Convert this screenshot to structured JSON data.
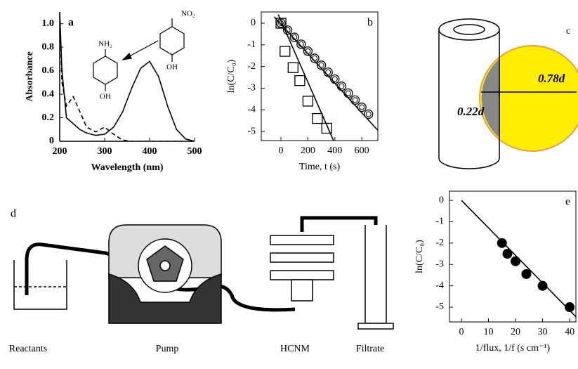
{
  "chart_data": [
    {
      "type": "line",
      "label": "a",
      "x_label": "Wavelength (nm)",
      "y_label": "Absorbance",
      "annotations": [
        "NO₂",
        "OH",
        "NH₂",
        "OH"
      ],
      "x": [
        200,
        205,
        215,
        230,
        245,
        260,
        280,
        300,
        320,
        340,
        360,
        380,
        400,
        420,
        440,
        460,
        480,
        500
      ],
      "series": [
        {
          "color": "#000000",
          "dash": false,
          "values": [
            1.1,
            0.6,
            0.2,
            0.15,
            0.1,
            0.07,
            0.05,
            0.06,
            0.12,
            0.25,
            0.45,
            0.62,
            0.68,
            0.55,
            0.3,
            0.1,
            0.02,
            0
          ]
        },
        {
          "color": "#000000",
          "dash": true,
          "values": [
            1.1,
            0.5,
            0.3,
            0.38,
            0.25,
            0.12,
            0.08,
            0.12,
            0.06,
            0.01,
            0,
            0,
            0,
            0,
            0,
            0,
            0,
            0
          ]
        }
      ],
      "xlim": [
        200,
        500
      ],
      "ylim": [
        0,
        1.1
      ],
      "xticks": [
        200,
        300,
        400,
        500
      ],
      "yticks": [
        0,
        0.2,
        0.4,
        0.6,
        0.8,
        {
          "value": 1,
          "label": "1.0"
        }
      ]
    },
    {
      "type": "scatter",
      "label": "b",
      "x_label": "Time, t (s)",
      "y_label": "ln(C/C₀)",
      "series": [
        {
          "marker": "circle",
          "color": "#000000",
          "x": [
            0,
            50,
            100,
            150,
            200,
            250,
            300,
            350,
            400,
            450,
            500,
            550,
            600,
            650
          ],
          "values": [
            0,
            -0.32,
            -0.65,
            -0.97,
            -1.29,
            -1.62,
            -1.94,
            -2.26,
            -2.58,
            -2.91,
            -3.23,
            -3.55,
            -3.88,
            -4.2
          ]
        },
        {
          "marker": "square",
          "color": "#000000",
          "x": [
            0,
            30,
            90,
            140,
            200,
            270,
            340
          ],
          "values": [
            0,
            -1.3,
            -2.05,
            -2.65,
            -3.6,
            -4.4,
            -4.85
          ]
        },
        {
          "marker": "none",
          "color": "#000000",
          "x": [
            -50,
            719
          ],
          "values": [
            0.3,
            -4.95
          ]
        },
        {
          "marker": "none",
          "color": "#000000",
          "x": [
            -20,
            390
          ],
          "values": [
            0.4,
            -5.42
          ]
        }
      ],
      "xlim": [
        -146,
        719
      ],
      "ylim": [
        -5.42,
        0.52
      ],
      "xticks": [
        0,
        200,
        400,
        600
      ],
      "yticks": [
        0,
        -1,
        -2,
        -3,
        -4,
        -5
      ]
    },
    {
      "type": "scatter",
      "label": "e",
      "x_label": "1/flux, 1/f (s cm⁻¹)",
      "y_label": "ln(C/C₀)",
      "series": [
        {
          "marker": "dot",
          "color": "#000000",
          "x": [
            15,
            17,
            20,
            24,
            30,
            40
          ],
          "values": [
            -2,
            -2.5,
            -2.85,
            -3.45,
            -4,
            -5
          ]
        },
        {
          "marker": "none",
          "color": "#000000",
          "x": [
            0,
            42.3
          ],
          "values": [
            0,
            -5.45
          ]
        }
      ],
      "xlim": [
        -4.4,
        42.3
      ],
      "ylim": [
        -5.69,
        0.43
      ],
      "xticks": [
        0,
        10,
        20,
        30,
        40
      ],
      "yticks": [
        0,
        -1,
        -2,
        -3,
        -4,
        -5
      ]
    }
  ],
  "panel_c": {
    "label": "c",
    "outer": "0.78d",
    "inner": "0.22d"
  },
  "panel_d": {
    "label": "d",
    "labels": [
      "Reactants",
      "Pump",
      "HCNM",
      "Filtrate"
    ]
  }
}
